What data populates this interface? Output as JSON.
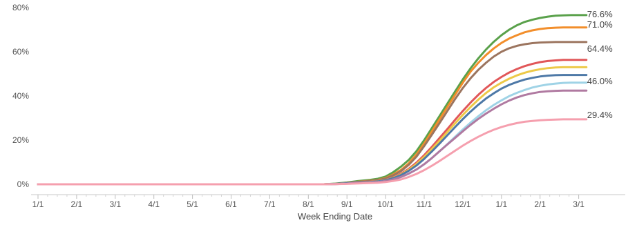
{
  "chart_data": {
    "type": "line",
    "xlabel": "Week Ending Date",
    "ylabel": "",
    "ylim": [
      0,
      80
    ],
    "yticks": [
      "0%",
      "20%",
      "40%",
      "60%",
      "80%"
    ],
    "ytick_values": [
      0,
      20,
      40,
      60,
      80
    ],
    "x_ticks": [
      "1/1",
      "2/1",
      "3/1",
      "4/1",
      "5/1",
      "6/1",
      "7/1",
      "8/1",
      "9/1",
      "10/1",
      "11/1",
      "12/1",
      "1/1",
      "2/1",
      "3/1"
    ],
    "grid": false,
    "legend": "none",
    "end_labels": [
      {
        "text": "76.6%",
        "value": 76.6
      },
      {
        "text": "71.0%",
        "value": 71.0
      },
      {
        "text": "64.4%",
        "value": 64.4
      },
      {
        "text": "46.0%",
        "value": 46.0
      },
      {
        "text": "29.4%",
        "value": 29.4
      }
    ],
    "x": [
      0,
      7.4,
      7.7,
      8.0,
      8.3,
      8.6,
      8.8,
      9.0,
      9.2,
      9.4,
      9.6,
      9.8,
      10.0,
      10.2,
      10.4,
      10.6,
      10.8,
      11.0,
      11.2,
      11.4,
      11.6,
      11.8,
      12.0,
      12.2,
      12.4,
      12.6,
      12.8,
      13.0,
      13.2,
      13.4,
      13.6,
      13.8,
      14.0,
      14.2
    ],
    "series": [
      {
        "color": "#5aa14b",
        "values": [
          0,
          0,
          0.3,
          0.8,
          1.5,
          2.0,
          2.5,
          3.5,
          5.5,
          8.0,
          11.0,
          15.0,
          20.0,
          25.5,
          31.0,
          36.5,
          42.0,
          47.5,
          52.5,
          57.0,
          61.0,
          64.5,
          67.5,
          70.0,
          72.0,
          73.5,
          74.5,
          75.3,
          75.9,
          76.3,
          76.5,
          76.6,
          76.6,
          76.6
        ]
      },
      {
        "color": "#f28e2b",
        "values": [
          0,
          0,
          0.2,
          0.6,
          1.2,
          1.6,
          2.0,
          2.8,
          4.5,
          6.5,
          9.5,
          13.5,
          18.5,
          24.0,
          29.5,
          35.0,
          40.5,
          46.0,
          51.0,
          55.0,
          58.5,
          61.5,
          64.0,
          66.0,
          67.5,
          68.8,
          69.7,
          70.3,
          70.7,
          70.9,
          71.0,
          71.0,
          71.0,
          71.0
        ]
      },
      {
        "color": "#9c755f",
        "values": [
          0,
          0,
          0.2,
          0.6,
          1.1,
          1.5,
          1.9,
          2.6,
          4.1,
          6.0,
          8.8,
          12.5,
          17.3,
          22.5,
          27.8,
          33.2,
          38.6,
          43.6,
          48.0,
          51.8,
          55.0,
          57.8,
          60.0,
          61.6,
          62.7,
          63.4,
          63.9,
          64.2,
          64.3,
          64.4,
          64.4,
          64.4,
          64.4,
          64.4
        ]
      },
      {
        "color": "#e15759",
        "values": [
          0,
          0,
          0.2,
          0.5,
          0.9,
          1.2,
          1.5,
          2.0,
          3.2,
          4.8,
          7.0,
          9.8,
          13.2,
          17.0,
          21.0,
          25.0,
          29.2,
          33.2,
          37.0,
          40.5,
          43.6,
          46.3,
          48.6,
          50.6,
          52.2,
          53.5,
          54.5,
          55.3,
          55.8,
          56.1,
          56.3,
          56.3,
          56.3,
          56.3
        ]
      },
      {
        "color": "#edc948",
        "values": [
          0,
          0,
          0.2,
          0.5,
          0.8,
          1.1,
          1.4,
          1.9,
          3.0,
          4.5,
          6.6,
          9.2,
          12.4,
          16.0,
          19.8,
          23.7,
          27.6,
          31.4,
          35.0,
          38.3,
          41.3,
          43.9,
          46.0,
          47.8,
          49.3,
          50.5,
          51.4,
          52.1,
          52.6,
          52.9,
          53.0,
          53.0,
          53.0,
          53.0
        ]
      },
      {
        "color": "#4e79a7",
        "values": [
          0,
          0,
          0.2,
          0.5,
          0.8,
          1.0,
          1.3,
          1.8,
          2.8,
          4.2,
          6.1,
          8.5,
          11.5,
          14.9,
          18.5,
          22.2,
          25.9,
          29.5,
          32.9,
          36.0,
          38.8,
          41.2,
          43.3,
          45.0,
          46.3,
          47.4,
          48.2,
          48.8,
          49.2,
          49.4,
          49.5,
          49.5,
          49.5,
          49.5
        ]
      },
      {
        "color": "#9fd3e6",
        "values": [
          0,
          0,
          0.1,
          0.3,
          0.6,
          0.8,
          1.0,
          1.4,
          2.2,
          3.3,
          4.8,
          6.7,
          9.1,
          11.9,
          15.0,
          18.2,
          21.5,
          24.8,
          27.9,
          30.8,
          33.5,
          35.9,
          38.0,
          39.9,
          41.4,
          42.7,
          43.8,
          44.6,
          45.2,
          45.6,
          45.9,
          46.0,
          46.0,
          46.0
        ]
      },
      {
        "color": "#b07aa1",
        "values": [
          0,
          0,
          0.1,
          0.3,
          0.6,
          0.8,
          1.0,
          1.4,
          2.2,
          3.3,
          4.8,
          6.7,
          9.1,
          11.9,
          15.0,
          18.0,
          21.0,
          24.0,
          26.9,
          29.6,
          32.0,
          34.2,
          36.2,
          37.9,
          39.3,
          40.4,
          41.2,
          41.8,
          42.1,
          42.3,
          42.4,
          42.4,
          42.4,
          42.4
        ]
      },
      {
        "color": "#f59fae",
        "values": [
          0,
          0,
          0.1,
          0.2,
          0.4,
          0.6,
          0.7,
          1.0,
          1.5,
          2.2,
          3.3,
          4.7,
          6.4,
          8.4,
          10.6,
          12.9,
          15.2,
          17.5,
          19.6,
          21.5,
          23.2,
          24.7,
          25.9,
          26.9,
          27.7,
          28.3,
          28.7,
          29.0,
          29.2,
          29.3,
          29.4,
          29.4,
          29.4,
          29.4
        ]
      }
    ]
  }
}
